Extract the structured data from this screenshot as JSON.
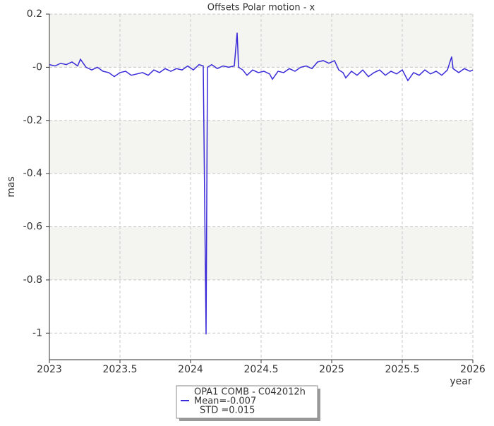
{
  "chart_data": {
    "type": "line",
    "title": "Offsets Polar motion - x",
    "y_label": "mas",
    "x_label": "year",
    "x": [
      2023.0,
      2023.04,
      2023.08,
      2023.12,
      2023.16,
      2023.2,
      2023.22,
      2023.26,
      2023.3,
      2023.34,
      2023.38,
      2023.42,
      2023.46,
      2023.5,
      2023.54,
      2023.58,
      2023.62,
      2023.66,
      2023.7,
      2023.74,
      2023.78,
      2023.82,
      2023.86,
      2023.9,
      2023.94,
      2023.98,
      2024.02,
      2024.06,
      2024.09,
      2024.11,
      2024.115,
      2024.12,
      2024.15,
      2024.19,
      2024.23,
      2024.27,
      2024.31,
      2024.33,
      2024.335,
      2024.34,
      2024.37,
      2024.4,
      2024.44,
      2024.48,
      2024.52,
      2024.56,
      2024.58,
      2024.62,
      2024.66,
      2024.7,
      2024.74,
      2024.78,
      2024.82,
      2024.86,
      2024.9,
      2024.94,
      2024.98,
      2025.02,
      2025.05,
      2025.08,
      2025.1,
      2025.14,
      2025.18,
      2025.22,
      2025.26,
      2025.3,
      2025.34,
      2025.38,
      2025.42,
      2025.46,
      2025.5,
      2025.54,
      2025.58,
      2025.62,
      2025.66,
      2025.7,
      2025.74,
      2025.78,
      2025.82,
      2025.85,
      2025.86,
      2025.9,
      2025.94,
      2025.98,
      2026.0
    ],
    "series": [
      {
        "name": "OPA1 COMB - C042012h",
        "color": "#3a2bd8",
        "values": [
          0.01,
          0.005,
          0.015,
          0.01,
          0.02,
          0.005,
          0.03,
          0.0,
          -0.01,
          0.0,
          -0.015,
          -0.02,
          -0.035,
          -0.02,
          -0.015,
          -0.03,
          -0.025,
          -0.02,
          -0.03,
          -0.01,
          -0.02,
          -0.005,
          -0.015,
          -0.005,
          -0.01,
          0.005,
          -0.01,
          0.01,
          0.005,
          -1.005,
          -0.5,
          0.0,
          0.01,
          -0.005,
          0.005,
          0.0,
          0.005,
          0.13,
          0.07,
          0.0,
          -0.01,
          -0.03,
          -0.01,
          -0.02,
          -0.015,
          -0.025,
          -0.045,
          -0.015,
          -0.02,
          -0.005,
          -0.015,
          0.0,
          0.005,
          -0.005,
          0.02,
          0.025,
          0.015,
          0.025,
          -0.01,
          -0.02,
          -0.04,
          -0.015,
          -0.03,
          -0.01,
          -0.035,
          -0.02,
          -0.01,
          -0.03,
          -0.015,
          -0.025,
          -0.01,
          -0.05,
          -0.02,
          -0.03,
          -0.01,
          -0.025,
          -0.015,
          -0.03,
          -0.01,
          0.04,
          -0.005,
          -0.02,
          -0.005,
          -0.015,
          -0.01
        ]
      }
    ],
    "legend_stats": [
      "Mean=-0.007",
      "STD =0.015"
    ],
    "xlim": [
      2023,
      2026
    ],
    "xticks": [
      2023,
      2023.5,
      2024,
      2024.5,
      2025,
      2025.5,
      2026
    ],
    "ylim": [
      -1.1,
      0.2
    ],
    "yticks": [
      0.2,
      {
        "value": 0,
        "label": "-0"
      },
      -0.2,
      -0.4,
      -0.6,
      -0.8,
      -1
    ],
    "grid": true
  }
}
